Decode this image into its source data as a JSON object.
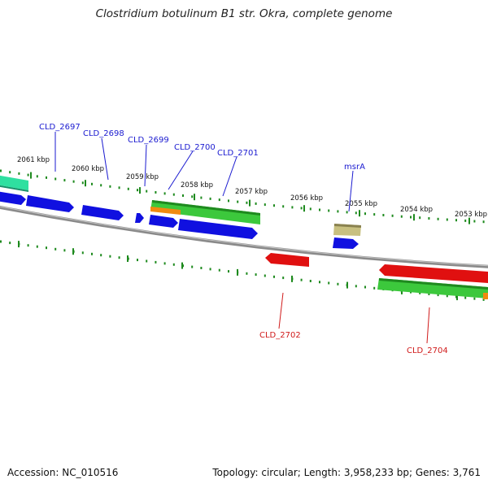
{
  "title": "Clostridium botulinum B1 str. Okra, complete genome",
  "footer": {
    "accession": "Accession: NC_010516",
    "topology": "Topology: circular; Length: 3,958,233 bp; Genes: 3,761"
  },
  "scale_labels": [
    "2061 kbp",
    "2060 kbp",
    "2059 kbp",
    "2058 kbp",
    "2057 kbp",
    "2056 kbp",
    "2055 kbp",
    "2054 kbp",
    "2053 kbp"
  ],
  "gene_labels_forward": [
    "CLD_2697",
    "CLD_2698",
    "CLD_2699",
    "CLD_2700",
    "CLD_2701",
    "msrA"
  ],
  "gene_labels_reverse": [
    "CLD_2702",
    "CLD_2704"
  ],
  "colors": {
    "backbone": "#8a8a8a",
    "tick": "#1e8a1e",
    "cds_forward": "#1010e0",
    "cds_reverse": "#e01010",
    "gene_green": "#3cc83c",
    "gene_orange": "#f08a10",
    "gene_teal": "#2fe0a0",
    "gene_khaki": "#c8c080",
    "label_forward": "#1a1ad0",
    "label_reverse": "#d01a1a"
  }
}
